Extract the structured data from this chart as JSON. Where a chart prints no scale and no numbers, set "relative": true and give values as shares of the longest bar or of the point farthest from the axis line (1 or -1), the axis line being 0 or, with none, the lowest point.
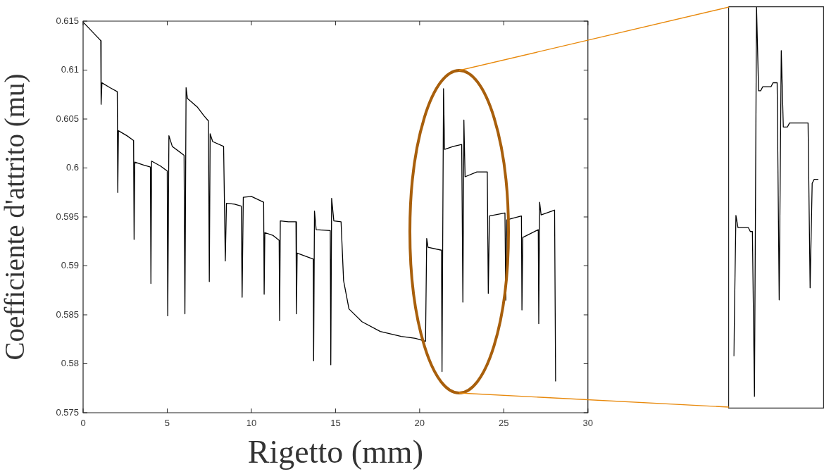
{
  "chart_data": [
    {
      "type": "line",
      "xlabel": "Rigetto (mm)",
      "ylabel": "Coefficiente d'attrito (mu)",
      "xlim": [
        0,
        30
      ],
      "ylim": [
        0.575,
        0.615
      ],
      "xticks": [
        0,
        5,
        10,
        15,
        20,
        25,
        30
      ],
      "yticks": [
        0.575,
        0.58,
        0.585,
        0.59,
        0.595,
        0.6,
        0.605,
        0.61,
        0.615
      ],
      "marker": "none",
      "series": [
        {
          "color": "#000000",
          "x": [
            0,
            0.5,
            1.0,
            1.05,
            1.07,
            1.12,
            1.6,
            2.03,
            2.06,
            2.1,
            2.6,
            3.0,
            3.03,
            3.07,
            3.6,
            4.0,
            4.03,
            4.07,
            4.6,
            5.0,
            5.03,
            5.1,
            5.3,
            6.0,
            6.05,
            6.12,
            6.2,
            6.8,
            7.2,
            7.45,
            7.5,
            7.55,
            7.7,
            8.35,
            8.45,
            8.52,
            9.0,
            9.4,
            9.45,
            9.52,
            10.0,
            10.73,
            10.76,
            10.8,
            11.3,
            11.65,
            11.68,
            11.72,
            12.2,
            12.65,
            12.68,
            12.72,
            13.2,
            13.68,
            13.7,
            13.75,
            13.85,
            14.69,
            14.72,
            14.77,
            14.9,
            15.33,
            15.48,
            15.8,
            16.57,
            17.66,
            18.9,
            19.75,
            20.35,
            20.42,
            20.5,
            21.3,
            21.33,
            21.42,
            21.48,
            22.0,
            22.5,
            22.57,
            22.63,
            22.7,
            23.4,
            24.02,
            24.08,
            24.15,
            25.07,
            25.12,
            25.18,
            26.05,
            26.08,
            26.13,
            27.05,
            27.08,
            27.13,
            27.22,
            28.02,
            28.08
          ],
          "values": [
            0.6149,
            0.614,
            0.6131,
            0.613,
            0.6065,
            0.6087,
            0.6082,
            0.6078,
            0.5975,
            0.6038,
            0.6033,
            0.6028,
            0.5927,
            0.6006,
            0.6003,
            0.6001,
            0.5882,
            0.6007,
            0.6002,
            0.5997,
            0.5849,
            0.6033,
            0.6022,
            0.6013,
            0.5851,
            0.6082,
            0.6071,
            0.6062,
            0.6053,
            0.6048,
            0.5884,
            0.6035,
            0.6027,
            0.6022,
            0.5905,
            0.5964,
            0.5963,
            0.5961,
            0.5868,
            0.597,
            0.5971,
            0.5965,
            0.5871,
            0.5934,
            0.5931,
            0.5926,
            0.5844,
            0.5946,
            0.5945,
            0.5945,
            0.5851,
            0.5913,
            0.591,
            0.5907,
            0.5803,
            0.5956,
            0.5937,
            0.5936,
            0.5799,
            0.5969,
            0.5946,
            0.5945,
            0.5885,
            0.5856,
            0.5843,
            0.5833,
            0.5828,
            0.5826,
            0.5823,
            0.5928,
            0.5919,
            0.5916,
            0.5792,
            0.6081,
            0.6019,
            0.6022,
            0.6024,
            0.5863,
            0.6049,
            0.5991,
            0.5996,
            0.5996,
            0.5872,
            0.5951,
            0.5954,
            0.5865,
            0.5947,
            0.5951,
            0.5855,
            0.5929,
            0.5937,
            0.5841,
            0.5965,
            0.5952,
            0.5957,
            0.5782
          ]
        }
      ]
    },
    {
      "type": "line",
      "relative": true,
      "marker": "none",
      "categories": [
        null,
        null,
        null,
        null,
        null,
        null,
        null,
        null,
        null,
        null,
        null,
        null,
        null,
        null,
        null,
        null,
        null,
        null,
        null,
        null,
        null,
        null,
        null,
        null,
        null,
        null,
        null,
        null,
        null,
        null,
        null,
        null,
        null,
        null,
        null,
        null,
        null,
        null,
        null,
        null,
        null,
        null
      ],
      "series": [
        {
          "color": "#000000",
          "values": [
            0.13,
            0.48,
            0.45,
            0.45,
            0.45,
            0.45,
            0.45,
            0.45,
            0.44,
            0.44,
            0.03,
            1,
            0.79,
            0.79,
            0.8,
            0.8,
            0.8,
            0.8,
            0.8,
            0.81,
            0.81,
            0.81,
            0.27,
            0.89,
            0.7,
            0.7,
            0.7,
            0.71,
            0.71,
            0.71,
            0.71,
            0.71,
            0.71,
            0.71,
            0.71,
            0.71,
            0.71,
            0.3,
            0.56,
            0.57,
            0.57,
            0.57
          ]
        }
      ]
    }
  ]
}
